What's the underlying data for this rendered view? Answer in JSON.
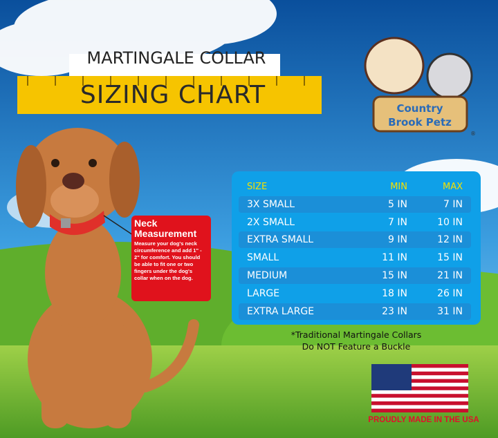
{
  "header": {
    "title": "MARTINGALE COLLAR",
    "subtitle": "SIZING CHART"
  },
  "logo": {
    "line1": "Country",
    "line2": "Brook Petz",
    "mark": "®"
  },
  "callout": {
    "title": "Neck Measurement",
    "text": "Measure your dog's neck circumference and add 1\" - 2\" for comfort. You should be able to fit one or two fingers under the dog's collar when on the dog."
  },
  "table": {
    "columns": [
      "SIZE",
      "MIN",
      "MAX"
    ],
    "rows": [
      [
        "3X SMALL",
        "5 IN",
        "7 IN"
      ],
      [
        "2X SMALL",
        "7 IN",
        "10 IN"
      ],
      [
        "EXTRA SMALL",
        "9 IN",
        "12 IN"
      ],
      [
        "SMALL",
        "11 IN",
        "15 IN"
      ],
      [
        "MEDIUM",
        "15 IN",
        "21 IN"
      ],
      [
        "LARGE",
        "18 IN",
        "26 IN"
      ],
      [
        "EXTRA LARGE",
        "23 IN",
        "31 IN"
      ]
    ]
  },
  "note": {
    "line1": "*Traditional Martingale Collars",
    "line2": "Do NOT Feature a Buckle"
  },
  "footer": {
    "made_in": "PROUDLY MADE IN THE USA"
  }
}
